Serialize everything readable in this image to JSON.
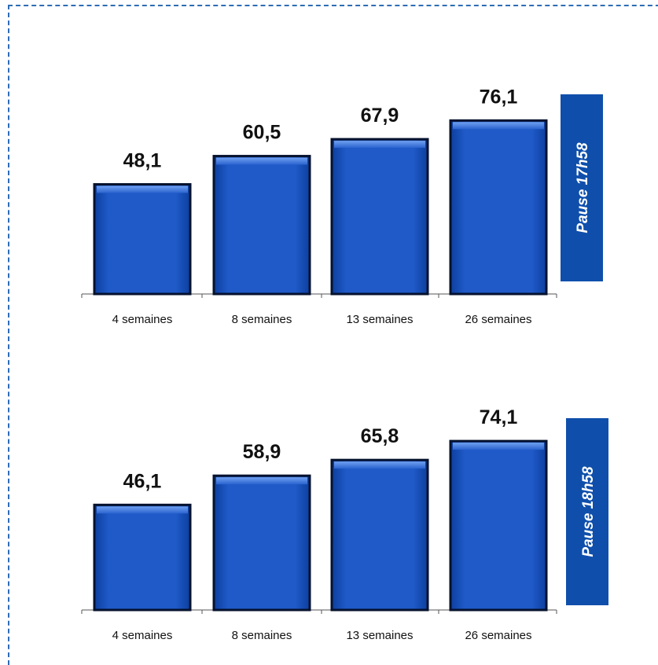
{
  "chart_data": [
    {
      "type": "bar",
      "categories": [
        "4 semaines",
        "8 semaines",
        "13 semaines",
        "26 semaines"
      ],
      "values": [
        48.1,
        60.5,
        67.9,
        76.1
      ],
      "value_labels": [
        "48,1",
        "60,5",
        "67,9",
        "76,1"
      ],
      "side_label": "Pause 17h58",
      "ylim": [
        0,
        100
      ],
      "grid": false,
      "colors": {
        "bar": "#1f57c3",
        "bar_edge": "#06122e",
        "side_box": "#0f4fab"
      }
    },
    {
      "type": "bar",
      "categories": [
        "4 semaines",
        "8 semaines",
        "13 semaines",
        "26 semaines"
      ],
      "values": [
        46.1,
        58.9,
        65.8,
        74.1
      ],
      "value_labels": [
        "46,1",
        "58,9",
        "65,8",
        "74,1"
      ],
      "side_label": "Pause 18h58",
      "ylim": [
        0,
        100
      ],
      "grid": false,
      "colors": {
        "bar": "#1f57c3",
        "bar_edge": "#06122e",
        "side_box": "#0f4fab"
      }
    }
  ]
}
